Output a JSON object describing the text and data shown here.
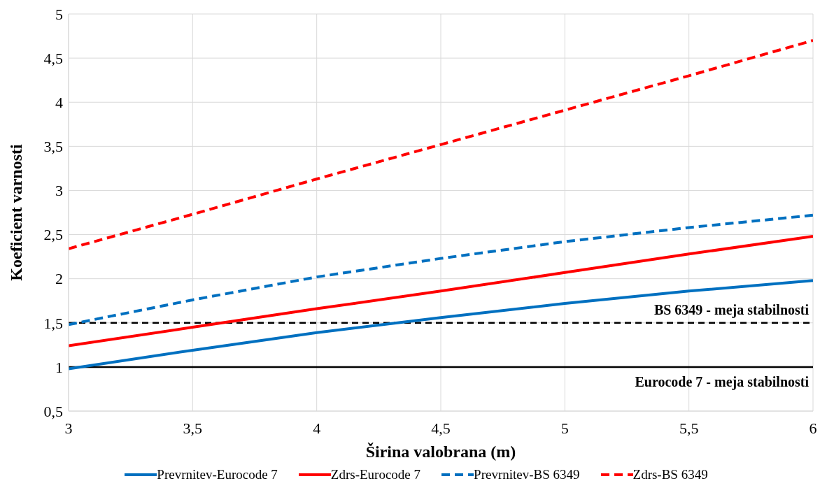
{
  "chart_data": {
    "type": "line",
    "xlabel": "Širina valobrana (m)",
    "ylabel": "Koeficient varnosti",
    "x": [
      3,
      3.5,
      4,
      4.5,
      5,
      5.5,
      6
    ],
    "xlim": [
      3,
      6
    ],
    "xticks": [
      3,
      {
        "value": 3.5,
        "label": "3,5"
      },
      4,
      {
        "value": 4.5,
        "label": "4,5"
      },
      5,
      {
        "value": 5.5,
        "label": "5,5"
      },
      6
    ],
    "ylim": [
      0.5,
      5
    ],
    "yticks": [
      {
        "value": 0.5,
        "label": "0,5"
      },
      1,
      {
        "value": 1.5,
        "label": "1,5"
      },
      2,
      {
        "value": 2.5,
        "label": "2,5"
      },
      3,
      {
        "value": 3.5,
        "label": "3,5"
      },
      4,
      {
        "value": 4.5,
        "label": "4,5"
      },
      5
    ],
    "grid": true,
    "legend": "bottom",
    "marker": "none",
    "series": [
      {
        "name": "Prevrnitev-Eurocode 7",
        "color": "#0070c0",
        "line_style": "solid",
        "values": [
          0.98,
          1.19,
          1.39,
          1.56,
          1.72,
          1.86,
          1.98
        ]
      },
      {
        "name": "Zdrs-Eurocode 7",
        "color": "#ff0000",
        "line_style": "solid",
        "values": [
          1.24,
          1.45,
          1.66,
          1.86,
          2.07,
          2.28,
          2.48
        ]
      },
      {
        "name": "Prevrnitev-BS 6349",
        "color": "#0070c0",
        "line_style": "dashed",
        "values": [
          1.48,
          1.76,
          2.02,
          2.23,
          2.42,
          2.58,
          2.72
        ]
      },
      {
        "name": "Zdrs-BS 6349",
        "color": "#ff0000",
        "line_style": "dashed",
        "values": [
          2.34,
          2.73,
          3.13,
          3.52,
          3.91,
          4.3,
          4.7
        ]
      }
    ],
    "ref_lines": [
      {
        "axis": "y",
        "value": 1.5,
        "label": "BS 6349 - meja stabilnosti",
        "color": "#000000",
        "line_style": "dashed"
      },
      {
        "axis": "y",
        "value": 1,
        "label": "Eurocode 7 - meja stabilnosti",
        "color": "#000000",
        "line_style": "solid"
      }
    ]
  }
}
